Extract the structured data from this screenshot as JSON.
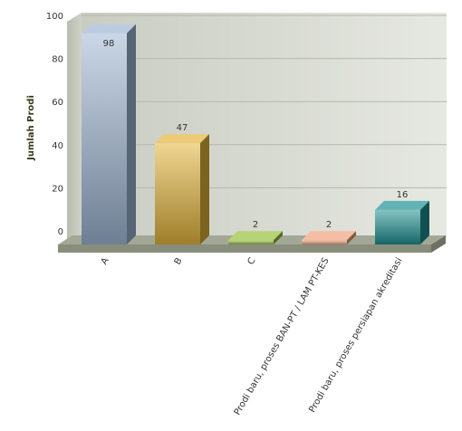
{
  "chart_data": {
    "type": "bar",
    "title": "",
    "xlabel": "",
    "ylabel": "Jumlah Prodi",
    "ylim": [
      0,
      100
    ],
    "yticks": [
      0,
      20,
      40,
      60,
      80,
      100
    ],
    "grid": true,
    "style": "3d",
    "categories": [
      "A",
      "B",
      "C",
      "Prodi baru, proses BAN-PT / LAM PT-KES",
      "Prodi baru, proses persiapan akreditasi"
    ],
    "values": [
      98,
      47,
      2,
      2,
      16
    ],
    "colors": [
      "#9fb6d2",
      "#e2b43a",
      "#96c03c",
      "#f0a07c",
      "#1f9292"
    ]
  }
}
